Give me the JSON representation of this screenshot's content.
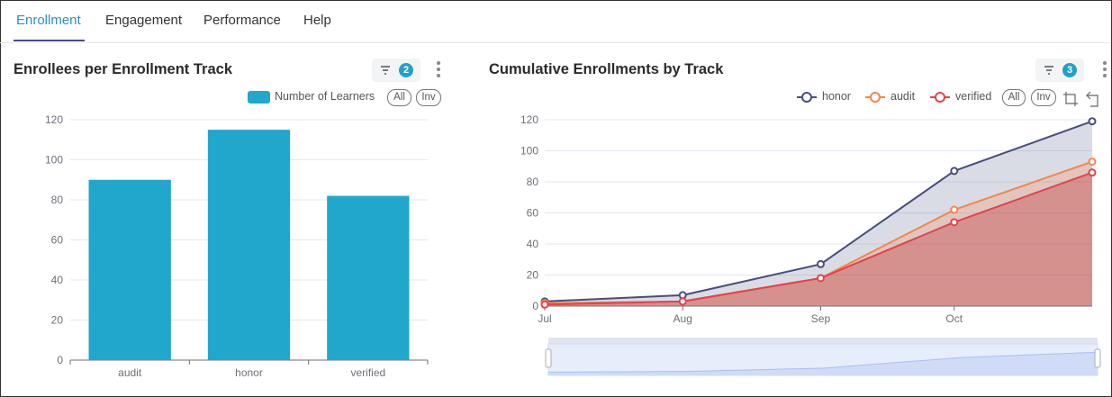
{
  "tabs": [
    {
      "label": "Enrollment",
      "active": true
    },
    {
      "label": "Engagement"
    },
    {
      "label": "Performance"
    },
    {
      "label": "Help"
    }
  ],
  "left_card": {
    "title": "Enrollees per Enrollment Track",
    "filter_count": "2",
    "filter_icon": "filter-icon",
    "menu_icon": "kebab-icon",
    "legend_all": "All",
    "legend_inv": "Inv"
  },
  "right_card": {
    "title": "Cumulative Enrollments by Track",
    "filter_count": "3",
    "filter_icon": "filter-icon",
    "menu_icon": "kebab-icon",
    "legend_all": "All",
    "legend_inv": "Inv",
    "toolbox_icons": [
      "zoom-select-icon",
      "zoom-reset-icon"
    ]
  },
  "chart_data": [
    {
      "type": "bar",
      "categories": [
        "audit",
        "honor",
        "verified"
      ],
      "series": [
        {
          "name": "Number of Learners",
          "values": [
            90,
            115,
            82
          ],
          "color": "#21a7cc"
        }
      ],
      "ylim": [
        0,
        120
      ],
      "yticks": [
        0,
        20,
        40,
        60,
        80,
        100,
        120
      ],
      "grid": true,
      "legend": "top-right"
    },
    {
      "type": "area",
      "x": [
        "07-01",
        "08-01",
        "09-01",
        "10-01",
        "11-01"
      ],
      "xticks": [
        "Jul",
        "Aug",
        "Sep",
        "Oct"
      ],
      "series": [
        {
          "name": "honor",
          "values": [
            3,
            7,
            27,
            87,
            119
          ],
          "color": "#474e7d"
        },
        {
          "name": "audit",
          "values": [
            2,
            3,
            18,
            62,
            93
          ],
          "color": "#f5854a"
        },
        {
          "name": "verified",
          "values": [
            1,
            3,
            18,
            54,
            86
          ],
          "color": "#e5424d"
        }
      ],
      "ylim": [
        0,
        120
      ],
      "yticks": [
        0,
        20,
        40,
        60,
        80,
        100,
        120
      ],
      "grid": true,
      "legend": "top-right",
      "data_zoom": true
    }
  ]
}
